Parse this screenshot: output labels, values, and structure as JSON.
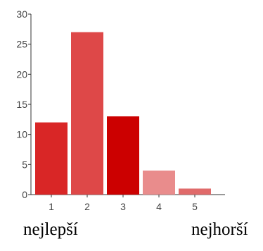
{
  "top_fragment": "",
  "chart_data": {
    "type": "bar",
    "categories": [
      "1",
      "2",
      "3",
      "4",
      "5"
    ],
    "values": [
      12,
      27,
      13,
      4,
      1
    ],
    "ylim": [
      0,
      30
    ],
    "yticks": [
      "0",
      "5",
      "10",
      "15",
      "20",
      "25",
      "30"
    ],
    "grid": false,
    "colors": [
      "#d92626",
      "#de4848",
      "#cc0000",
      "#e98c8c",
      "#e06a6a"
    ]
  },
  "scale": {
    "left_label": "nejlepší",
    "right_label": "nejhorší"
  }
}
